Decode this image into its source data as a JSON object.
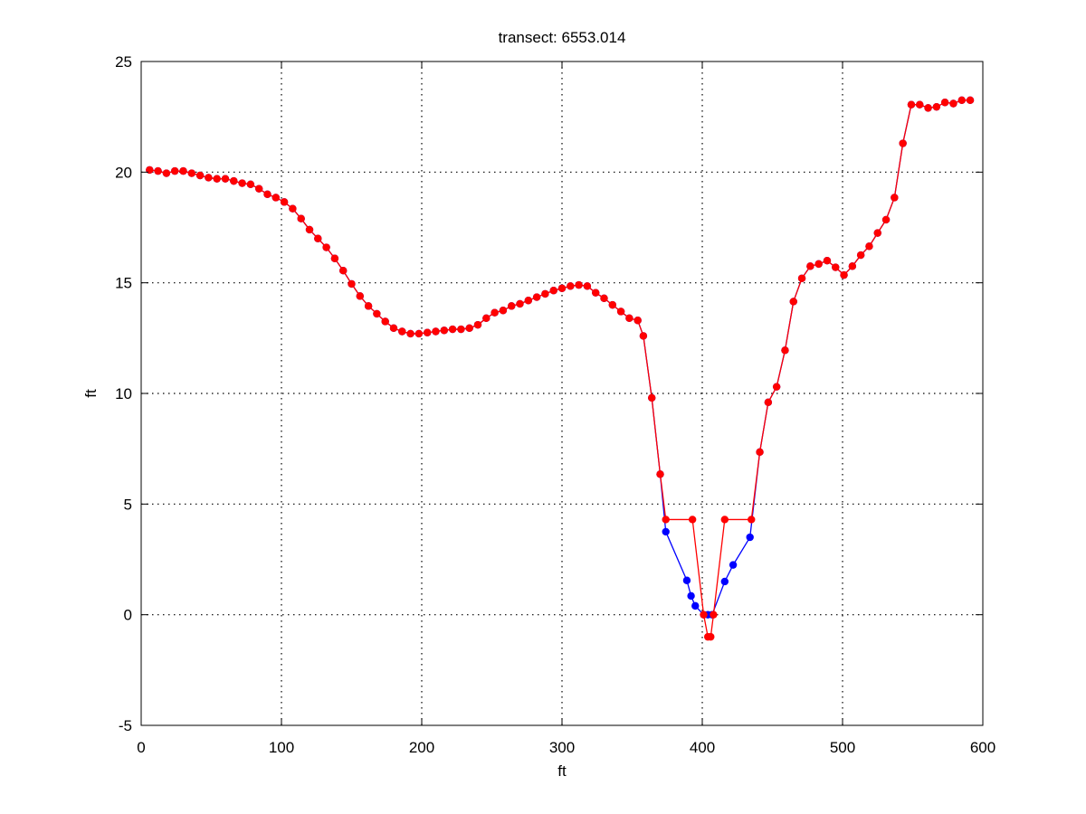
{
  "chart_data": {
    "type": "line",
    "title": "transect: 6553.014",
    "xlabel": "ft",
    "ylabel": "ft",
    "xlim": [
      0,
      600
    ],
    "ylim": [
      -5,
      25
    ],
    "xticks": [
      0,
      100,
      200,
      300,
      400,
      500,
      600
    ],
    "yticks": [
      -5,
      0,
      5,
      10,
      15,
      20,
      25
    ],
    "grid": true,
    "series": [
      {
        "color": "#0000ff",
        "marker": "circle",
        "points": [
          [
            6,
            20.1
          ],
          [
            12,
            20.05
          ],
          [
            18,
            19.95
          ],
          [
            24,
            20.05
          ],
          [
            30,
            20.05
          ],
          [
            36,
            19.95
          ],
          [
            42,
            19.85
          ],
          [
            48,
            19.75
          ],
          [
            54,
            19.7
          ],
          [
            60,
            19.7
          ],
          [
            66,
            19.6
          ],
          [
            72,
            19.5
          ],
          [
            78,
            19.45
          ],
          [
            84,
            19.25
          ],
          [
            90,
            19.0
          ],
          [
            96,
            18.85
          ],
          [
            102,
            18.65
          ],
          [
            108,
            18.35
          ],
          [
            114,
            17.9
          ],
          [
            120,
            17.4
          ],
          [
            126,
            17.0
          ],
          [
            132,
            16.6
          ],
          [
            138,
            16.1
          ],
          [
            144,
            15.55
          ],
          [
            150,
            14.95
          ],
          [
            156,
            14.4
          ],
          [
            162,
            13.95
          ],
          [
            168,
            13.6
          ],
          [
            174,
            13.25
          ],
          [
            180,
            12.95
          ],
          [
            186,
            12.8
          ],
          [
            192,
            12.7
          ],
          [
            198,
            12.7
          ],
          [
            204,
            12.75
          ],
          [
            210,
            12.8
          ],
          [
            216,
            12.85
          ],
          [
            222,
            12.9
          ],
          [
            228,
            12.9
          ],
          [
            234,
            12.95
          ],
          [
            240,
            13.1
          ],
          [
            246,
            13.4
          ],
          [
            252,
            13.65
          ],
          [
            258,
            13.75
          ],
          [
            264,
            13.95
          ],
          [
            270,
            14.05
          ],
          [
            276,
            14.2
          ],
          [
            282,
            14.35
          ],
          [
            288,
            14.5
          ],
          [
            294,
            14.65
          ],
          [
            300,
            14.75
          ],
          [
            306,
            14.85
          ],
          [
            312,
            14.9
          ],
          [
            318,
            14.85
          ],
          [
            324,
            14.55
          ],
          [
            330,
            14.3
          ],
          [
            336,
            14.0
          ],
          [
            342,
            13.7
          ],
          [
            348,
            13.4
          ],
          [
            354,
            13.3
          ],
          [
            358,
            12.6
          ],
          [
            364,
            9.8
          ],
          [
            370,
            6.35
          ],
          [
            374,
            3.75
          ],
          [
            389,
            1.55
          ],
          [
            392,
            0.85
          ],
          [
            395,
            0.4
          ],
          [
            401,
            0.0
          ],
          [
            404,
            0.0
          ],
          [
            407,
            0.0
          ],
          [
            416,
            1.5
          ],
          [
            422,
            2.25
          ],
          [
            434,
            3.5
          ],
          [
            441,
            7.35
          ],
          [
            447,
            9.6
          ],
          [
            453,
            10.3
          ],
          [
            459,
            11.95
          ],
          [
            465,
            14.15
          ],
          [
            471,
            15.2
          ],
          [
            477,
            15.75
          ],
          [
            483,
            15.85
          ],
          [
            489,
            16.0
          ],
          [
            495,
            15.7
          ],
          [
            501,
            15.35
          ],
          [
            507,
            15.75
          ],
          [
            513,
            16.25
          ],
          [
            519,
            16.65
          ],
          [
            525,
            17.25
          ],
          [
            531,
            17.85
          ],
          [
            537,
            18.85
          ],
          [
            543,
            21.3
          ],
          [
            549,
            23.05
          ],
          [
            555,
            23.05
          ],
          [
            561,
            22.9
          ],
          [
            567,
            22.95
          ],
          [
            573,
            23.15
          ],
          [
            579,
            23.1
          ],
          [
            585,
            23.25
          ],
          [
            591,
            23.25
          ]
        ]
      },
      {
        "color": "#ff0000",
        "marker": "circle",
        "points": [
          [
            6,
            20.1
          ],
          [
            12,
            20.05
          ],
          [
            18,
            19.95
          ],
          [
            24,
            20.05
          ],
          [
            30,
            20.05
          ],
          [
            36,
            19.95
          ],
          [
            42,
            19.85
          ],
          [
            48,
            19.75
          ],
          [
            54,
            19.7
          ],
          [
            60,
            19.7
          ],
          [
            66,
            19.6
          ],
          [
            72,
            19.5
          ],
          [
            78,
            19.45
          ],
          [
            84,
            19.25
          ],
          [
            90,
            19.0
          ],
          [
            96,
            18.85
          ],
          [
            102,
            18.65
          ],
          [
            108,
            18.35
          ],
          [
            114,
            17.9
          ],
          [
            120,
            17.4
          ],
          [
            126,
            17.0
          ],
          [
            132,
            16.6
          ],
          [
            138,
            16.1
          ],
          [
            144,
            15.55
          ],
          [
            150,
            14.95
          ],
          [
            156,
            14.4
          ],
          [
            162,
            13.95
          ],
          [
            168,
            13.6
          ],
          [
            174,
            13.25
          ],
          [
            180,
            12.95
          ],
          [
            186,
            12.8
          ],
          [
            192,
            12.7
          ],
          [
            198,
            12.7
          ],
          [
            204,
            12.75
          ],
          [
            210,
            12.8
          ],
          [
            216,
            12.85
          ],
          [
            222,
            12.9
          ],
          [
            228,
            12.9
          ],
          [
            234,
            12.95
          ],
          [
            240,
            13.1
          ],
          [
            246,
            13.4
          ],
          [
            252,
            13.65
          ],
          [
            258,
            13.75
          ],
          [
            264,
            13.95
          ],
          [
            270,
            14.05
          ],
          [
            276,
            14.2
          ],
          [
            282,
            14.35
          ],
          [
            288,
            14.5
          ],
          [
            294,
            14.65
          ],
          [
            300,
            14.75
          ],
          [
            306,
            14.85
          ],
          [
            312,
            14.9
          ],
          [
            318,
            14.85
          ],
          [
            324,
            14.55
          ],
          [
            330,
            14.3
          ],
          [
            336,
            14.0
          ],
          [
            342,
            13.7
          ],
          [
            348,
            13.4
          ],
          [
            354,
            13.3
          ],
          [
            358,
            12.6
          ],
          [
            364,
            9.8
          ],
          [
            370,
            6.35
          ],
          [
            374,
            4.3
          ],
          [
            393,
            4.3
          ],
          [
            401,
            0.0
          ],
          [
            404,
            -1.0
          ],
          [
            406,
            -1.0
          ],
          [
            408,
            0.0
          ],
          [
            416,
            4.3
          ],
          [
            435,
            4.3
          ],
          [
            441,
            7.35
          ],
          [
            447,
            9.6
          ],
          [
            453,
            10.3
          ],
          [
            459,
            11.95
          ],
          [
            465,
            14.15
          ],
          [
            471,
            15.2
          ],
          [
            477,
            15.75
          ],
          [
            483,
            15.85
          ],
          [
            489,
            16.0
          ],
          [
            495,
            15.7
          ],
          [
            501,
            15.35
          ],
          [
            507,
            15.75
          ],
          [
            513,
            16.25
          ],
          [
            519,
            16.65
          ],
          [
            525,
            17.25
          ],
          [
            531,
            17.85
          ],
          [
            537,
            18.85
          ],
          [
            543,
            21.3
          ],
          [
            549,
            23.05
          ],
          [
            555,
            23.05
          ],
          [
            561,
            22.9
          ],
          [
            567,
            22.95
          ],
          [
            573,
            23.15
          ],
          [
            579,
            23.1
          ],
          [
            585,
            23.25
          ],
          [
            591,
            23.25
          ]
        ]
      }
    ]
  }
}
